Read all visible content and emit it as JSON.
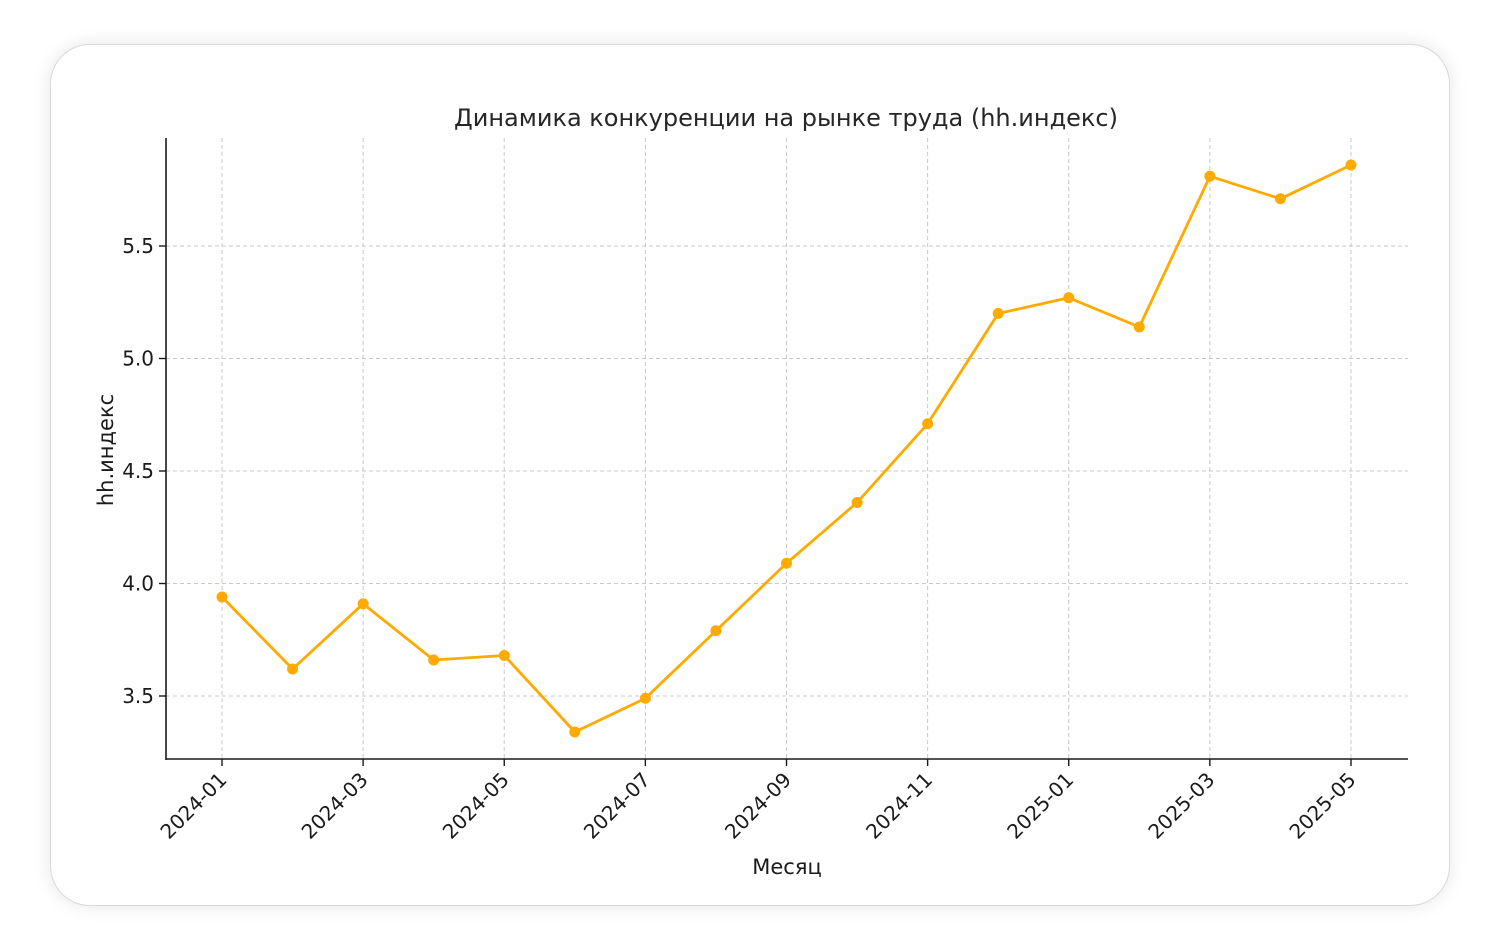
{
  "chart_data": {
    "type": "line",
    "title": "Динамика конкуренции на рынке труда (hh.индекс)",
    "xlabel": "Месяц",
    "ylabel": "hh.индекс",
    "x": [
      "2024-01",
      "2024-02",
      "2024-03",
      "2024-04",
      "2024-05",
      "2024-06",
      "2024-07",
      "2024-08",
      "2024-09",
      "2024-10",
      "2024-11",
      "2024-12",
      "2025-01",
      "2025-02",
      "2025-03",
      "2025-04",
      "2025-05"
    ],
    "x_ticks": [
      "2024-01",
      "2024-03",
      "2024-05",
      "2024-07",
      "2024-09",
      "2024-11",
      "2025-01",
      "2025-03",
      "2025-05"
    ],
    "y_ticks": [
      3.5,
      4.0,
      4.5,
      5.0,
      5.5
    ],
    "ylim": [
      3.22,
      5.98
    ],
    "grid": true,
    "series": [
      {
        "color": "#FFAA00",
        "marker": "circle",
        "values": [
          3.94,
          3.62,
          3.91,
          3.66,
          3.68,
          3.34,
          3.49,
          3.79,
          4.09,
          4.36,
          4.71,
          5.2,
          5.27,
          5.14,
          5.81,
          5.71,
          5.86
        ]
      }
    ]
  }
}
